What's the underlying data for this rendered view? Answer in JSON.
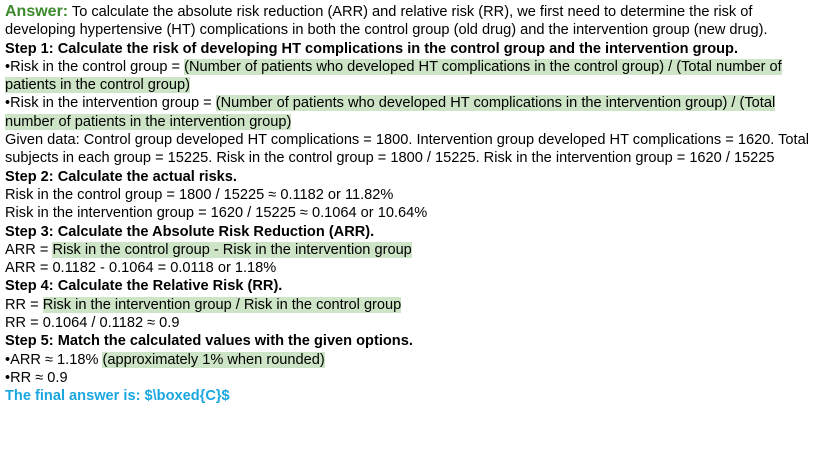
{
  "intro": {
    "label": "Answer:",
    "text": " To calculate the absolute risk reduction (ARR) and relative risk (RR), we first need to determine the risk of developing hypertensive (HT) complications in both the control group (old drug) and the intervention group (new drug)."
  },
  "step1": {
    "title": "Step 1: Calculate the risk of developing HT complications in the control group and the intervention group.",
    "control_prefix": "•Risk in the control group = ",
    "control_formula": "(Number of patients who developed HT complications in the control group) / (Total number of patients in the control group)",
    "intervention_prefix": "•Risk in the intervention group = ",
    "intervention_formula": "(Number of patients who developed HT complications in the intervention group) / (Total number of patients in the intervention group)",
    "given": "Given data: Control group developed HT complications = 1800. Intervention group developed HT complications = 1620. Total subjects in each group = 15225. Risk in the control group = 1800 / 15225. Risk in the intervention group = 1620 / 15225"
  },
  "step2": {
    "title": "Step 2: Calculate the actual risks.",
    "control": "Risk in the control group = 1800 / 15225 ≈ 0.1182 or 11.82%",
    "intervention": "Risk in the intervention group = 1620 / 15225 ≈ 0.1064 or 10.64%"
  },
  "step3": {
    "title": "Step 3: Calculate the Absolute Risk Reduction (ARR).",
    "formula_prefix": "ARR = ",
    "formula": "Risk in the control group - Risk in the intervention group",
    "result": "ARR = 0.1182 - 0.1064 = 0.0118 or 1.18%"
  },
  "step4": {
    "title": "Step 4: Calculate the Relative Risk (RR).",
    "formula_prefix": "RR = ",
    "formula": "Risk in the intervention group / Risk in the control group",
    "result": "RR = 0.1064 / 0.1182 ≈ 0.9"
  },
  "step5": {
    "title": "Step 5: Match the calculated values with the given options.",
    "arr_prefix": "•ARR ≈ 1.18% ",
    "arr_note": "(approximately 1% when rounded)",
    "rr": "•RR ≈ 0.9"
  },
  "final": "The final answer is: $\\boxed{C}$",
  "colors": {
    "answer_label": "#3d8a2d",
    "highlight": "#cde4c6",
    "final_answer": "#1aa7df"
  }
}
